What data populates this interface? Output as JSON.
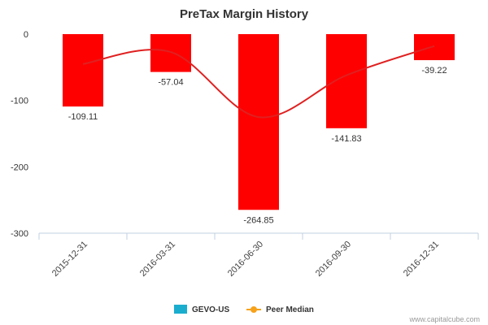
{
  "chart_data": {
    "type": "bar",
    "title": "PreTax Margin History",
    "categories": [
      "2015-12-31",
      "2016-03-31",
      "2016-06-30",
      "2016-09-30",
      "2016-12-31"
    ],
    "series": [
      {
        "name": "GEVO-US",
        "values": [
          -109.11,
          -57.04,
          -264.85,
          -141.83,
          -39.22
        ],
        "color": "#ff0000",
        "legend_color": "#1aadce"
      },
      {
        "name": "Peer Median",
        "values": [
          -45,
          -27,
          -125,
          -62,
          -18
        ],
        "color": "#e02020",
        "legend_color": "#f7a21b"
      }
    ],
    "data_labels": [
      "-109.11",
      "-57.04",
      "-264.85",
      "-141.83",
      "-39.22"
    ],
    "ylim": [
      -300,
      0
    ],
    "yticks": [
      0,
      -100,
      -200,
      -300
    ],
    "ytick_labels": [
      "0",
      "-100",
      "-200",
      "-300"
    ],
    "grid": false,
    "legend_position": "bottom-center"
  },
  "credit": "www.capitalcube.com"
}
